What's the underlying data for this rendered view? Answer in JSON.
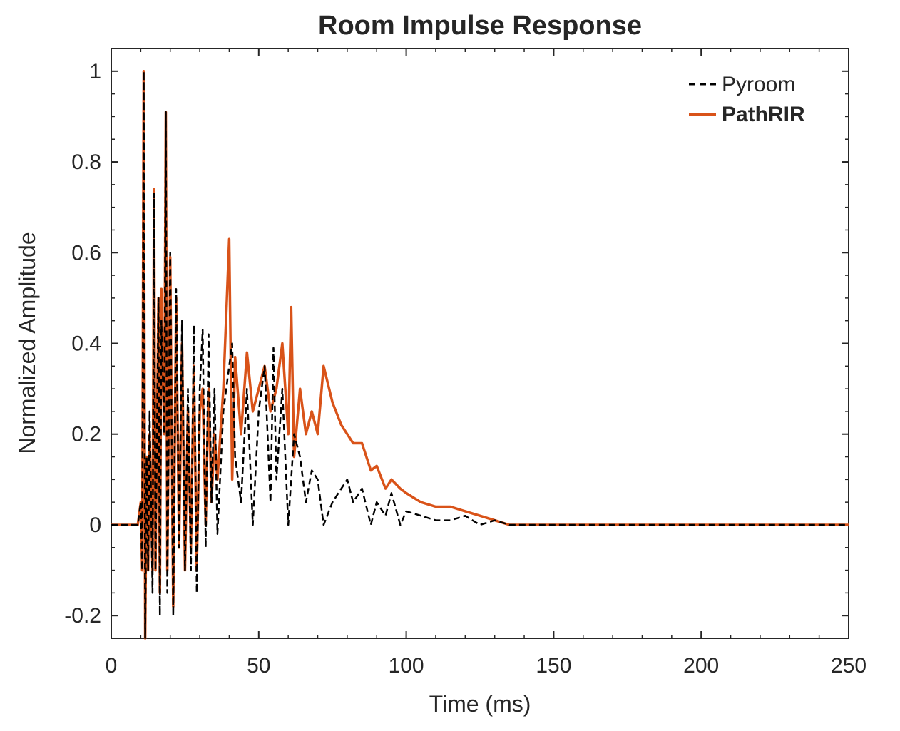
{
  "chart_data": {
    "type": "line",
    "title": "Room Impulse Response",
    "xlabel": "Time (ms)",
    "ylabel": "Normalized Amplitude",
    "xlim": [
      0,
      250
    ],
    "ylim": [
      -0.25,
      1.05
    ],
    "x_ticks": [
      0,
      50,
      100,
      150,
      200,
      250
    ],
    "x_tick_labels": [
      "0",
      "50",
      "100",
      "150",
      "200",
      "250"
    ],
    "y_ticks": [
      -0.2,
      0,
      0.2,
      0.4,
      0.6,
      0.8,
      1
    ],
    "y_tick_labels": [
      "-0.2",
      "0",
      "0.2",
      "0.4",
      "0.6",
      "0.8",
      "1"
    ],
    "grid": false,
    "legend_position": "top-right",
    "series": [
      {
        "name": "Pyroom",
        "style": "dashed",
        "color": "#000000",
        "x": [
          0,
          9,
          10,
          10.5,
          11,
          11.5,
          12,
          12.5,
          13,
          14,
          14.5,
          15,
          16,
          16.5,
          17,
          18,
          18.5,
          19,
          20,
          21,
          22,
          23,
          24,
          25,
          26,
          27,
          28,
          29,
          30,
          31,
          32,
          33,
          34,
          35,
          36,
          38,
          40,
          41,
          42,
          44,
          46,
          48,
          50,
          52,
          54,
          55,
          56,
          58,
          60,
          62,
          64,
          66,
          68,
          70,
          72,
          75,
          78,
          80,
          82,
          85,
          88,
          90,
          93,
          95,
          98,
          100,
          105,
          110,
          115,
          120,
          125,
          130,
          135,
          140,
          150,
          250
        ],
        "y": [
          0,
          0,
          0.05,
          -0.1,
          1.0,
          -0.25,
          0.15,
          -0.1,
          0.25,
          -0.15,
          0.73,
          -0.1,
          0.5,
          -0.2,
          0.45,
          0.2,
          0.91,
          -0.15,
          0.6,
          -0.2,
          0.52,
          -0.05,
          0.45,
          -0.1,
          0.3,
          -0.1,
          0.44,
          -0.15,
          0.3,
          0.43,
          -0.05,
          0.42,
          0.05,
          0.3,
          -0.02,
          0.25,
          0.35,
          0.4,
          0.15,
          0.05,
          0.3,
          0.0,
          0.25,
          0.35,
          0.05,
          0.39,
          0.1,
          0.3,
          0.0,
          0.2,
          0.15,
          0.05,
          0.12,
          0.1,
          0.0,
          0.05,
          0.08,
          0.1,
          0.05,
          0.08,
          0.0,
          0.05,
          0.02,
          0.07,
          0.0,
          0.03,
          0.02,
          0.01,
          0.01,
          0.02,
          0.0,
          0.01,
          0.0,
          0.0,
          0.0,
          0.0
        ]
      },
      {
        "name": "PathRIR",
        "style": "solid",
        "color": "#D95319",
        "x": [
          0,
          9,
          10,
          10.5,
          11,
          11.5,
          12,
          12.5,
          13,
          14,
          14.5,
          15,
          16,
          16.5,
          17,
          18,
          18.5,
          19,
          20,
          21,
          22,
          23,
          24,
          25,
          26,
          27,
          28,
          29,
          30,
          31,
          32,
          33,
          34,
          35,
          36,
          38,
          40,
          41,
          42,
          44,
          46,
          48,
          50,
          52,
          54,
          56,
          58,
          60,
          61,
          62,
          64,
          66,
          68,
          70,
          72,
          75,
          78,
          80,
          82,
          85,
          88,
          90,
          93,
          95,
          98,
          100,
          105,
          110,
          115,
          120,
          125,
          130,
          135,
          140,
          150,
          250
        ],
        "y": [
          0,
          0,
          0.05,
          -0.1,
          1.0,
          -0.25,
          0.15,
          -0.1,
          0.2,
          -0.1,
          0.74,
          -0.1,
          0.5,
          -0.15,
          0.52,
          0.2,
          0.91,
          -0.1,
          0.59,
          -0.18,
          0.5,
          -0.05,
          0.4,
          -0.1,
          0.25,
          -0.05,
          0.35,
          -0.1,
          0.25,
          0.3,
          0.0,
          0.3,
          0.05,
          0.2,
          0.1,
          0.3,
          0.63,
          0.1,
          0.37,
          0.2,
          0.38,
          0.25,
          0.3,
          0.35,
          0.25,
          0.3,
          0.4,
          0.2,
          0.48,
          0.15,
          0.3,
          0.2,
          0.25,
          0.2,
          0.35,
          0.27,
          0.22,
          0.2,
          0.18,
          0.18,
          0.12,
          0.13,
          0.08,
          0.1,
          0.08,
          0.07,
          0.05,
          0.04,
          0.04,
          0.03,
          0.02,
          0.01,
          0.0,
          0.0,
          0.0,
          0.0
        ]
      }
    ]
  }
}
